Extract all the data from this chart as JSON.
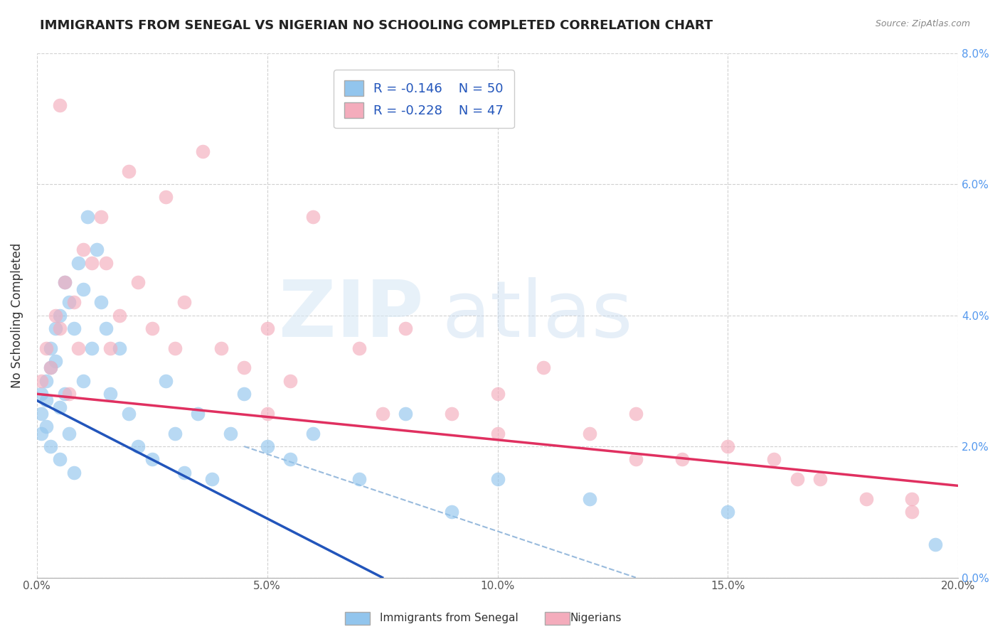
{
  "title": "IMMIGRANTS FROM SENEGAL VS NIGERIAN NO SCHOOLING COMPLETED CORRELATION CHART",
  "source": "Source: ZipAtlas.com",
  "ylabel": "No Schooling Completed",
  "xlim": [
    0.0,
    0.2
  ],
  "ylim": [
    0.0,
    0.08
  ],
  "xtick_labels": [
    "0.0%",
    "5.0%",
    "10.0%",
    "15.0%",
    "20.0%"
  ],
  "xtick_vals": [
    0.0,
    0.05,
    0.1,
    0.15,
    0.2
  ],
  "ytick_labels_right": [
    "0.0%",
    "2.0%",
    "4.0%",
    "6.0%",
    "8.0%"
  ],
  "ytick_vals": [
    0.0,
    0.02,
    0.04,
    0.06,
    0.08
  ],
  "legend_R1": "R = -0.146",
  "legend_N1": "N = 50",
  "legend_R2": "R = -0.228",
  "legend_N2": "N = 47",
  "color_blue": "#92C5ED",
  "color_pink": "#F4ACBC",
  "color_blue_line": "#2255BB",
  "color_pink_line": "#E03060",
  "color_dashed": "#99BBDD",
  "background_color": "#FFFFFF",
  "title_fontsize": 13,
  "senegal_x": [
    0.001,
    0.001,
    0.001,
    0.002,
    0.002,
    0.002,
    0.003,
    0.003,
    0.003,
    0.004,
    0.004,
    0.005,
    0.005,
    0.005,
    0.006,
    0.006,
    0.007,
    0.007,
    0.008,
    0.008,
    0.009,
    0.01,
    0.01,
    0.011,
    0.012,
    0.013,
    0.014,
    0.015,
    0.016,
    0.018,
    0.02,
    0.022,
    0.025,
    0.028,
    0.03,
    0.032,
    0.035,
    0.038,
    0.042,
    0.045,
    0.05,
    0.055,
    0.06,
    0.07,
    0.08,
    0.09,
    0.1,
    0.12,
    0.15,
    0.195
  ],
  "senegal_y": [
    0.025,
    0.022,
    0.028,
    0.03,
    0.027,
    0.023,
    0.035,
    0.032,
    0.02,
    0.038,
    0.033,
    0.04,
    0.026,
    0.018,
    0.045,
    0.028,
    0.042,
    0.022,
    0.038,
    0.016,
    0.048,
    0.03,
    0.044,
    0.055,
    0.035,
    0.05,
    0.042,
    0.038,
    0.028,
    0.035,
    0.025,
    0.02,
    0.018,
    0.03,
    0.022,
    0.016,
    0.025,
    0.015,
    0.022,
    0.028,
    0.02,
    0.018,
    0.022,
    0.015,
    0.025,
    0.01,
    0.015,
    0.012,
    0.01,
    0.005
  ],
  "nigerian_x": [
    0.001,
    0.002,
    0.003,
    0.004,
    0.005,
    0.006,
    0.007,
    0.008,
    0.009,
    0.01,
    0.012,
    0.014,
    0.016,
    0.018,
    0.02,
    0.022,
    0.025,
    0.028,
    0.032,
    0.036,
    0.04,
    0.045,
    0.05,
    0.055,
    0.06,
    0.07,
    0.08,
    0.09,
    0.1,
    0.11,
    0.12,
    0.13,
    0.14,
    0.15,
    0.16,
    0.17,
    0.18,
    0.19,
    0.005,
    0.015,
    0.03,
    0.05,
    0.075,
    0.1,
    0.13,
    0.165,
    0.19
  ],
  "nigerian_y": [
    0.03,
    0.035,
    0.032,
    0.04,
    0.038,
    0.045,
    0.028,
    0.042,
    0.035,
    0.05,
    0.048,
    0.055,
    0.035,
    0.04,
    0.062,
    0.045,
    0.038,
    0.058,
    0.042,
    0.065,
    0.035,
    0.032,
    0.038,
    0.03,
    0.055,
    0.035,
    0.038,
    0.025,
    0.028,
    0.032,
    0.022,
    0.025,
    0.018,
    0.02,
    0.018,
    0.015,
    0.012,
    0.01,
    0.072,
    0.048,
    0.035,
    0.025,
    0.025,
    0.022,
    0.018,
    0.015,
    0.012
  ],
  "blue_line_x0": 0.0,
  "blue_line_y0": 0.027,
  "blue_line_x1": 0.075,
  "blue_line_y1": 0.0,
  "pink_line_x0": 0.0,
  "pink_line_y0": 0.028,
  "pink_line_x1": 0.2,
  "pink_line_y1": 0.014,
  "dash_line_x0": 0.045,
  "dash_line_y0": 0.02,
  "dash_line_x1": 0.13,
  "dash_line_y1": 0.0
}
